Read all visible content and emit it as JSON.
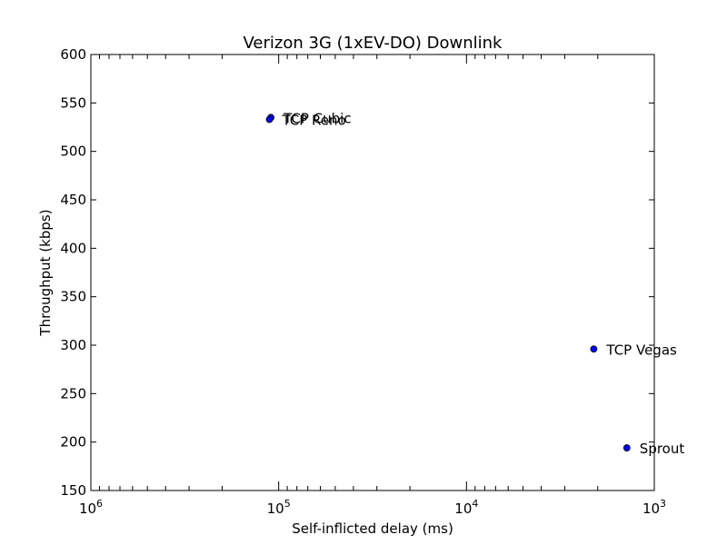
{
  "chart_data": {
    "type": "scatter",
    "title": "Verizon 3G (1xEV-DO) Downlink",
    "xlabel": "Self-inflicted delay (ms)",
    "ylabel": "Throughput (kbps)",
    "x_scale": "log",
    "x_inverted": true,
    "xlim": [
      1000000,
      1000
    ],
    "ylim": [
      150,
      600
    ],
    "grid": false,
    "x_ticks": [
      {
        "base": "10",
        "exp": "6",
        "value": 1000000
      },
      {
        "base": "10",
        "exp": "5",
        "value": 100000
      },
      {
        "base": "10",
        "exp": "4",
        "value": 10000
      },
      {
        "base": "10",
        "exp": "3",
        "value": 1000
      }
    ],
    "y_ticks": [
      150,
      200,
      250,
      300,
      350,
      400,
      450,
      500,
      550,
      600
    ],
    "points": [
      {
        "label": "TCP Cubic",
        "x": 110000,
        "y": 535
      },
      {
        "label": "TCP Reno",
        "x": 112000,
        "y": 533
      },
      {
        "label": "TCP Vegas",
        "x": 2100,
        "y": 296
      },
      {
        "label": "Sprout",
        "x": 1400,
        "y": 194
      }
    ],
    "marker_color": "#0000ff"
  }
}
